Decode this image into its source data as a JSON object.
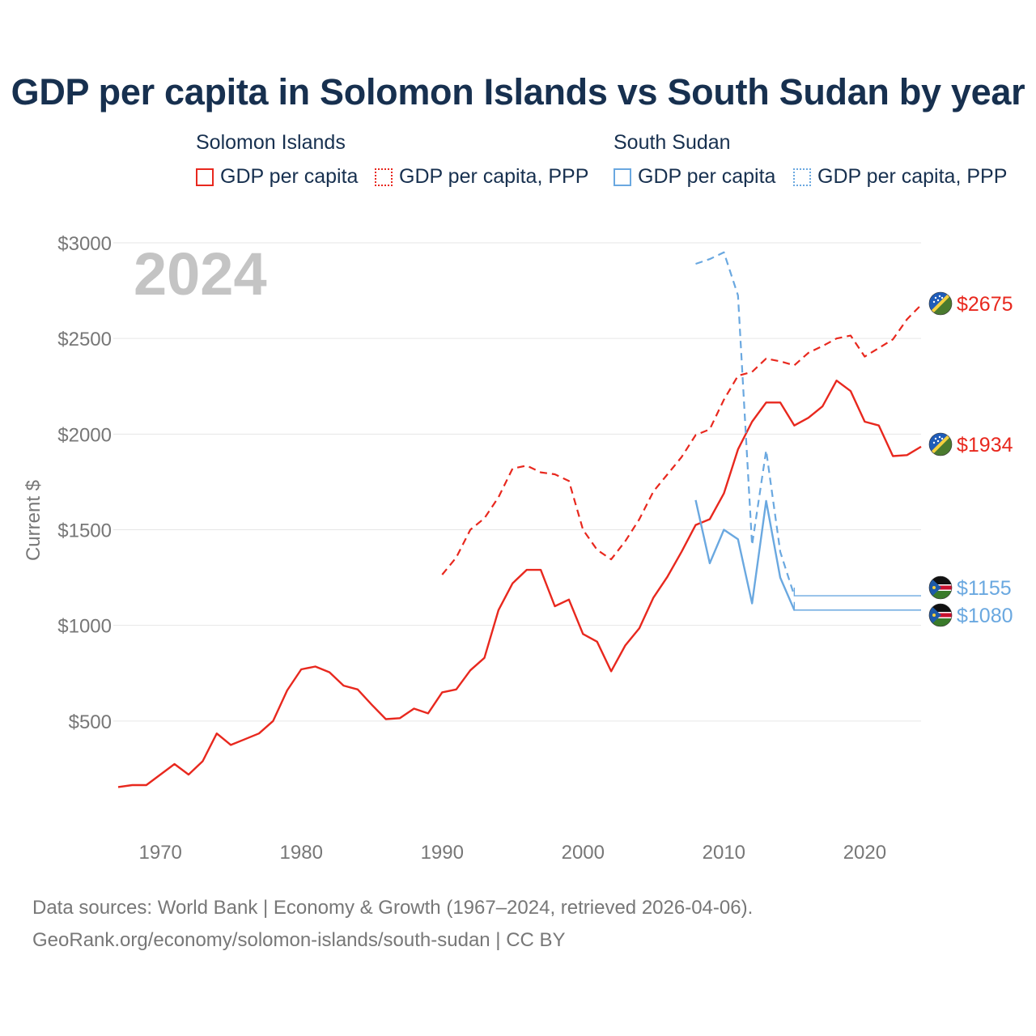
{
  "title": "GDP per capita in Solomon Islands vs South Sudan by year",
  "watermark_year": "2024",
  "legend": {
    "groups": [
      {
        "country": "Solomon Islands",
        "items": [
          "GDP per capita",
          "GDP per capita, PPP"
        ]
      },
      {
        "country": "South Sudan",
        "items": [
          "GDP per capita",
          "GDP per capita, PPP"
        ]
      }
    ]
  },
  "footer": {
    "line1": "Data sources: World Bank | Economy & Growth (1967–2024, retrieved 2026-04-06).",
    "line2": "GeoRank.org/economy/solomon-islands/south-sudan | CC BY"
  },
  "colors": {
    "solomon": "#e8281e",
    "sudan": "#6aa8e0",
    "grid": "#e6e6e6",
    "axis_text": "#777777"
  },
  "chart_data": {
    "type": "line",
    "title": "GDP per capita in Solomon Islands vs South Sudan by year",
    "xlabel": "",
    "ylabel": "Current $",
    "xlim": [
      1967,
      2024
    ],
    "ylim": [
      0,
      3000
    ],
    "x_ticks": [
      1970,
      1980,
      1990,
      2000,
      2010,
      2020
    ],
    "x_tick_labels": [
      "1970",
      "1980",
      "1990",
      "2000",
      "2010",
      "2020"
    ],
    "y_ticks": [
      500,
      1000,
      1500,
      2000,
      2500,
      3000
    ],
    "y_tick_labels": [
      "$500",
      "$1000",
      "$1500",
      "$2000",
      "$2500",
      "$3000"
    ],
    "grid": true,
    "series": [
      {
        "name": "Solomon Islands GDP per capita",
        "style": "solid",
        "color": "#e8281e",
        "end_label": "$1934",
        "x": [
          1967,
          1968,
          1969,
          1970,
          1971,
          1972,
          1973,
          1974,
          1975,
          1976,
          1977,
          1978,
          1979,
          1980,
          1981,
          1982,
          1983,
          1984,
          1985,
          1986,
          1987,
          1988,
          1989,
          1990,
          1991,
          1992,
          1993,
          1994,
          1995,
          1996,
          1997,
          1998,
          1999,
          2000,
          2001,
          2002,
          2003,
          2004,
          2005,
          2006,
          2007,
          2008,
          2009,
          2010,
          2011,
          2012,
          2013,
          2014,
          2015,
          2016,
          2017,
          2018,
          2019,
          2020,
          2021,
          2022,
          2023,
          2024
        ],
        "y": [
          155,
          165,
          165,
          220,
          275,
          220,
          290,
          435,
          375,
          405,
          435,
          500,
          660,
          770,
          785,
          755,
          685,
          665,
          585,
          510,
          515,
          565,
          540,
          650,
          665,
          765,
          830,
          1080,
          1220,
          1290,
          1290,
          1100,
          1135,
          955,
          915,
          760,
          895,
          985,
          1145,
          1255,
          1385,
          1525,
          1555,
          1690,
          1920,
          2065,
          2165,
          2165,
          2045,
          2085,
          2145,
          2280,
          2225,
          2065,
          2045,
          1885,
          1890,
          1934
        ]
      },
      {
        "name": "Solomon Islands GDP per capita, PPP",
        "style": "dashed",
        "color": "#e8281e",
        "end_label": "$2675",
        "x": [
          1990,
          1991,
          1992,
          1993,
          1994,
          1995,
          1996,
          1997,
          1998,
          1999,
          2000,
          2001,
          2002,
          2003,
          2004,
          2005,
          2006,
          2007,
          2008,
          2009,
          2010,
          2011,
          2012,
          2013,
          2014,
          2015,
          2016,
          2017,
          2018,
          2019,
          2020,
          2021,
          2022,
          2023,
          2024
        ],
        "y": [
          1265,
          1355,
          1500,
          1560,
          1670,
          1820,
          1835,
          1800,
          1790,
          1755,
          1500,
          1395,
          1345,
          1440,
          1555,
          1700,
          1790,
          1880,
          1995,
          2025,
          2180,
          2305,
          2325,
          2395,
          2380,
          2360,
          2425,
          2460,
          2500,
          2515,
          2405,
          2450,
          2495,
          2600,
          2675
        ]
      },
      {
        "name": "South Sudan GDP per capita",
        "style": "solid",
        "color": "#6aa8e0",
        "end_label": "$1080",
        "x": [
          2008,
          2009,
          2010,
          2011,
          2012,
          2013,
          2014,
          2015,
          2024
        ],
        "y": [
          1655,
          1325,
          1500,
          1450,
          1115,
          1650,
          1250,
          1080,
          1080
        ]
      },
      {
        "name": "South Sudan GDP per capita, PPP",
        "style": "dashed",
        "color": "#6aa8e0",
        "end_label": "$1155",
        "x": [
          2008,
          2009,
          2010,
          2011,
          2012,
          2013,
          2014,
          2015,
          2024
        ],
        "y": [
          2890,
          2915,
          2950,
          2725,
          1420,
          1915,
          1385,
          1155,
          1155
        ]
      }
    ]
  }
}
